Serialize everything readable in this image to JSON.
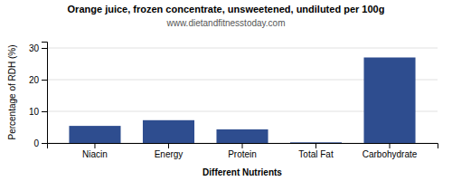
{
  "chart_data": {
    "type": "bar",
    "title": "Orange juice, frozen concentrate, unsweetened, undiluted per 100g",
    "subtitle": "www.dietandfitnesstoday.com",
    "xlabel": "Different Nutrients",
    "ylabel": "Percentage of RDH (%)",
    "categories": [
      "Niacin",
      "Energy",
      "Protein",
      "Total Fat",
      "Carbohydrate"
    ],
    "values": [
      5.4,
      7.2,
      4.3,
      0.2,
      27.0
    ],
    "color": "#2e4d8f",
    "ylim": [
      0,
      32
    ],
    "yticks": [
      0,
      10,
      20,
      30
    ],
    "grid": true
  }
}
